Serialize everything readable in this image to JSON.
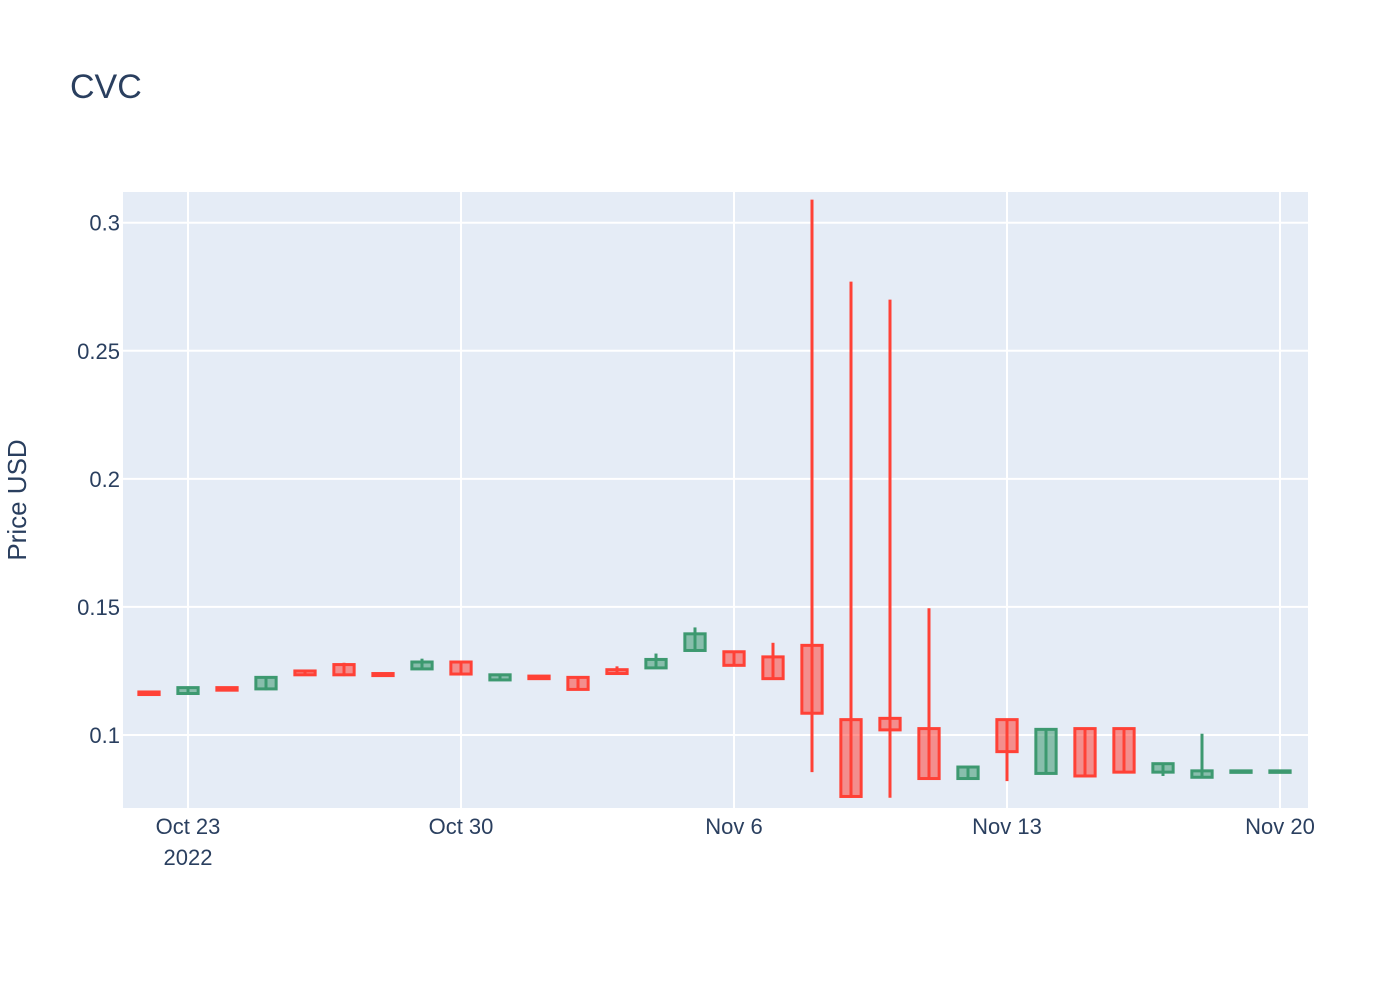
{
  "chart_data": {
    "type": "candlestick",
    "title": "CVC",
    "xlabel": "",
    "ylabel": "Price USD",
    "ylim": [
      0.0715,
      0.312
    ],
    "xlim": [
      "2022-10-21",
      "2022-11-20"
    ],
    "x_ticks": [
      {
        "date": "2022-10-23",
        "label": "Oct 23",
        "sublabel": "2022"
      },
      {
        "date": "2022-10-30",
        "label": "Oct 30",
        "sublabel": ""
      },
      {
        "date": "2022-11-06",
        "label": "Nov 6",
        "sublabel": ""
      },
      {
        "date": "2022-11-13",
        "label": "Nov 13",
        "sublabel": ""
      },
      {
        "date": "2022-11-20",
        "label": "Nov 20",
        "sublabel": ""
      }
    ],
    "y_ticks": [
      {
        "value": 0.1,
        "label": "0.1"
      },
      {
        "value": 0.15,
        "label": "0.15"
      },
      {
        "value": 0.2,
        "label": "0.2"
      },
      {
        "value": 0.25,
        "label": "0.25"
      },
      {
        "value": 0.3,
        "label": "0.3"
      }
    ],
    "grid": true,
    "legend": false,
    "increasing_color": "#3d9970",
    "decreasing_color": "#ff4136",
    "series": [
      {
        "values": [
          {
            "date": "2022-10-22",
            "open": 0.1168,
            "high": 0.117,
            "low": 0.1155,
            "close": 0.1158
          },
          {
            "date": "2022-10-23",
            "open": 0.1162,
            "high": 0.119,
            "low": 0.1158,
            "close": 0.1185
          },
          {
            "date": "2022-10-24",
            "open": 0.1185,
            "high": 0.1188,
            "low": 0.117,
            "close": 0.1175
          },
          {
            "date": "2022-10-25",
            "open": 0.118,
            "high": 0.123,
            "low": 0.1175,
            "close": 0.1225
          },
          {
            "date": "2022-10-26",
            "open": 0.125,
            "high": 0.1253,
            "low": 0.1232,
            "close": 0.1235
          },
          {
            "date": "2022-10-27",
            "open": 0.1275,
            "high": 0.1282,
            "low": 0.123,
            "close": 0.1235
          },
          {
            "date": "2022-10-28",
            "open": 0.124,
            "high": 0.1243,
            "low": 0.123,
            "close": 0.1232
          },
          {
            "date": "2022-10-29",
            "open": 0.1258,
            "high": 0.1298,
            "low": 0.1255,
            "close": 0.1285
          },
          {
            "date": "2022-10-30",
            "open": 0.1285,
            "high": 0.1288,
            "low": 0.1235,
            "close": 0.1238
          },
          {
            "date": "2022-10-31",
            "open": 0.1215,
            "high": 0.124,
            "low": 0.1212,
            "close": 0.1235
          },
          {
            "date": "2022-11-01",
            "open": 0.123,
            "high": 0.1233,
            "low": 0.1218,
            "close": 0.122
          },
          {
            "date": "2022-11-02",
            "open": 0.1225,
            "high": 0.1228,
            "low": 0.1175,
            "close": 0.1178
          },
          {
            "date": "2022-11-03",
            "open": 0.1255,
            "high": 0.1268,
            "low": 0.1238,
            "close": 0.124
          },
          {
            "date": "2022-11-04",
            "open": 0.1262,
            "high": 0.1318,
            "low": 0.1258,
            "close": 0.1295
          },
          {
            "date": "2022-11-05",
            "open": 0.133,
            "high": 0.142,
            "low": 0.1325,
            "close": 0.1395
          },
          {
            "date": "2022-11-06",
            "open": 0.1325,
            "high": 0.1328,
            "low": 0.127,
            "close": 0.1272
          },
          {
            "date": "2022-11-07",
            "open": 0.1305,
            "high": 0.136,
            "low": 0.1215,
            "close": 0.122
          },
          {
            "date": "2022-11-08",
            "open": 0.135,
            "high": 0.309,
            "low": 0.0855,
            "close": 0.1085
          },
          {
            "date": "2022-11-09",
            "open": 0.106,
            "high": 0.277,
            "low": 0.0755,
            "close": 0.076
          },
          {
            "date": "2022-11-10",
            "open": 0.1065,
            "high": 0.27,
            "low": 0.0755,
            "close": 0.102
          },
          {
            "date": "2022-11-11",
            "open": 0.1025,
            "high": 0.1495,
            "low": 0.083,
            "close": 0.083
          },
          {
            "date": "2022-11-12",
            "open": 0.083,
            "high": 0.0875,
            "low": 0.0825,
            "close": 0.0875
          },
          {
            "date": "2022-11-13",
            "open": 0.106,
            "high": 0.1063,
            "low": 0.082,
            "close": 0.0935
          },
          {
            "date": "2022-11-14",
            "open": 0.085,
            "high": 0.1025,
            "low": 0.0848,
            "close": 0.1022
          },
          {
            "date": "2022-11-15",
            "open": 0.1025,
            "high": 0.1028,
            "low": 0.0835,
            "close": 0.084
          },
          {
            "date": "2022-11-16",
            "open": 0.1025,
            "high": 0.1028,
            "low": 0.085,
            "close": 0.0855
          },
          {
            "date": "2022-11-17",
            "open": 0.0855,
            "high": 0.089,
            "low": 0.084,
            "close": 0.0888
          },
          {
            "date": "2022-11-18",
            "open": 0.0835,
            "high": 0.1005,
            "low": 0.0832,
            "close": 0.086
          },
          {
            "date": "2022-11-19",
            "open": 0.0858,
            "high": 0.0862,
            "low": 0.0855,
            "close": 0.086
          },
          {
            "date": "2022-11-20",
            "open": 0.0858,
            "high": 0.0862,
            "low": 0.0855,
            "close": 0.086
          }
        ]
      }
    ]
  }
}
